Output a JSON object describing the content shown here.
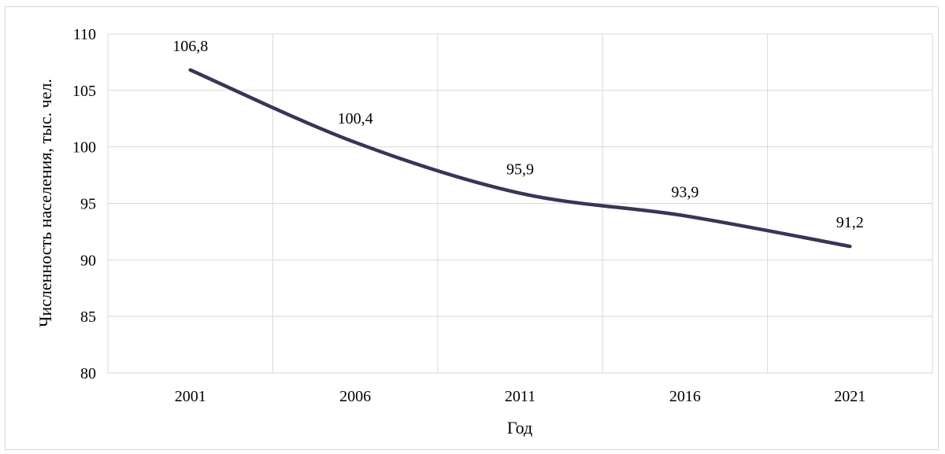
{
  "chart_data": {
    "type": "line",
    "x": [
      "2001",
      "2006",
      "2011",
      "2016",
      "2021"
    ],
    "values": [
      106.8,
      100.4,
      95.9,
      93.9,
      91.2
    ],
    "data_labels": [
      "106,8",
      "100,4",
      "95,9",
      "93,9",
      "91,2"
    ],
    "xlabel": "Год",
    "ylabel": "Численность населения, тыс. чел.",
    "ylim": [
      80,
      110
    ],
    "yticks": [
      80,
      85,
      90,
      95,
      100,
      105,
      110
    ],
    "ytick_labels": [
      "80",
      "85",
      "90",
      "95",
      "100",
      "105",
      "110"
    ],
    "grid": true,
    "smooth": true,
    "line_color": "#3b3456",
    "grid_color": "#d9d9d9"
  }
}
